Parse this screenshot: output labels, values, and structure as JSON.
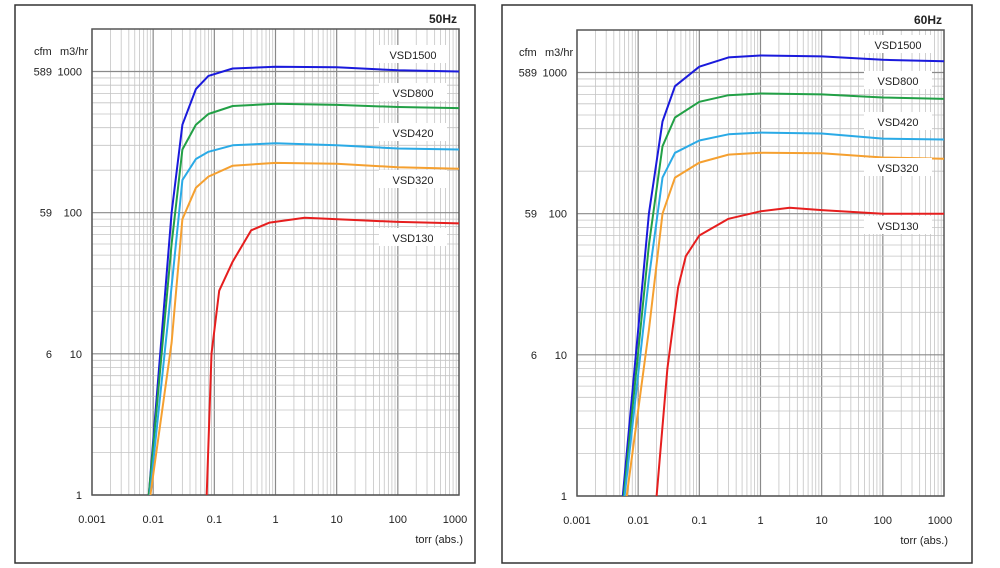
{
  "chart_data": [
    {
      "type": "line",
      "title": "50Hz",
      "xlabel": "torr (abs.)",
      "ylabel": "m3/hr",
      "ylabel_secondary": "cfm",
      "xscale": "log",
      "yscale": "log",
      "xlim": [
        0.001,
        1000
      ],
      "ylim": [
        1,
        2000
      ],
      "grid": true,
      "x_ticks": [
        "0.001",
        "0.01",
        "0.1",
        "1",
        "10",
        "100",
        "1000"
      ],
      "y_ticks": [
        {
          "value": 1000,
          "label": "1000",
          "cfm": "589"
        },
        {
          "value": 100,
          "label": "100",
          "cfm": "59"
        },
        {
          "value": 10,
          "label": "10",
          "cfm": "6"
        },
        {
          "value": 1,
          "label": "1",
          "cfm": ""
        }
      ],
      "series": [
        {
          "name": "VSD1500",
          "color": "#1a1adc",
          "points": [
            [
              0.0085,
              1
            ],
            [
              0.02,
              100
            ],
            [
              0.03,
              420
            ],
            [
              0.05,
              750
            ],
            [
              0.08,
              930
            ],
            [
              0.2,
              1050
            ],
            [
              1,
              1080
            ],
            [
              10,
              1070
            ],
            [
              100,
              1020
            ],
            [
              1000,
              1000
            ]
          ]
        },
        {
          "name": "VSD800",
          "color": "#22a046",
          "points": [
            [
              0.0085,
              1
            ],
            [
              0.02,
              60
            ],
            [
              0.03,
              280
            ],
            [
              0.05,
              420
            ],
            [
              0.08,
              500
            ],
            [
              0.2,
              570
            ],
            [
              1,
              590
            ],
            [
              10,
              580
            ],
            [
              100,
              560
            ],
            [
              1000,
              550
            ]
          ]
        },
        {
          "name": "VSD420",
          "color": "#2aaae6",
          "points": [
            [
              0.0088,
              1
            ],
            [
              0.02,
              30
            ],
            [
              0.03,
              170
            ],
            [
              0.05,
              240
            ],
            [
              0.08,
              270
            ],
            [
              0.2,
              300
            ],
            [
              1,
              310
            ],
            [
              10,
              300
            ],
            [
              100,
              285
            ],
            [
              1000,
              280
            ]
          ]
        },
        {
          "name": "VSD320",
          "color": "#f5a030",
          "points": [
            [
              0.009,
              1
            ],
            [
              0.02,
              12
            ],
            [
              0.03,
              90
            ],
            [
              0.05,
              150
            ],
            [
              0.08,
              180
            ],
            [
              0.2,
              215
            ],
            [
              1,
              225
            ],
            [
              10,
              222
            ],
            [
              100,
              210
            ],
            [
              1000,
              205
            ]
          ]
        },
        {
          "name": "VSD130",
          "color": "#e61e1e",
          "points": [
            [
              0.075,
              1
            ],
            [
              0.09,
              10
            ],
            [
              0.12,
              28
            ],
            [
              0.2,
              45
            ],
            [
              0.4,
              75
            ],
            [
              0.8,
              85
            ],
            [
              3,
              92
            ],
            [
              100,
              86
            ],
            [
              1000,
              84
            ]
          ]
        }
      ]
    },
    {
      "type": "line",
      "title": "60Hz",
      "xlabel": "torr (abs.)",
      "ylabel": "m3/hr",
      "ylabel_secondary": "cfm",
      "xscale": "log",
      "yscale": "log",
      "xlim": [
        0.001,
        1000
      ],
      "ylim": [
        1,
        2000
      ],
      "grid": true,
      "x_ticks": [
        "0.001",
        "0.01",
        "0.1",
        "1",
        "10",
        "100",
        "1000"
      ],
      "y_ticks": [
        {
          "value": 1000,
          "label": "1000",
          "cfm": "589"
        },
        {
          "value": 100,
          "label": "100",
          "cfm": "59"
        },
        {
          "value": 10,
          "label": "10",
          "cfm": "6"
        },
        {
          "value": 1,
          "label": "1",
          "cfm": ""
        }
      ],
      "series": [
        {
          "name": "VSD1500",
          "color": "#1a1adc",
          "points": [
            [
              0.0056,
              1
            ],
            [
              0.015,
              100
            ],
            [
              0.025,
              450
            ],
            [
              0.04,
              800
            ],
            [
              0.1,
              1100
            ],
            [
              0.3,
              1280
            ],
            [
              1,
              1320
            ],
            [
              10,
              1300
            ],
            [
              100,
              1230
            ],
            [
              1000,
              1200
            ]
          ]
        },
        {
          "name": "VSD800",
          "color": "#22a046",
          "points": [
            [
              0.0058,
              1
            ],
            [
              0.015,
              60
            ],
            [
              0.025,
              300
            ],
            [
              0.04,
              480
            ],
            [
              0.1,
              620
            ],
            [
              0.3,
              690
            ],
            [
              1,
              710
            ],
            [
              10,
              700
            ],
            [
              100,
              665
            ],
            [
              1000,
              650
            ]
          ]
        },
        {
          "name": "VSD420",
          "color": "#2aaae6",
          "points": [
            [
              0.006,
              1
            ],
            [
              0.015,
              35
            ],
            [
              0.025,
              180
            ],
            [
              0.04,
              270
            ],
            [
              0.1,
              330
            ],
            [
              0.3,
              365
            ],
            [
              1,
              375
            ],
            [
              10,
              370
            ],
            [
              100,
              340
            ],
            [
              1000,
              335
            ]
          ]
        },
        {
          "name": "VSD320",
          "color": "#f5a030",
          "points": [
            [
              0.0065,
              1
            ],
            [
              0.015,
              15
            ],
            [
              0.025,
              100
            ],
            [
              0.04,
              180
            ],
            [
              0.1,
              230
            ],
            [
              0.3,
              262
            ],
            [
              1,
              270
            ],
            [
              10,
              268
            ],
            [
              100,
              250
            ],
            [
              1000,
              245
            ]
          ]
        },
        {
          "name": "VSD130",
          "color": "#e61e1e",
          "points": [
            [
              0.02,
              1
            ],
            [
              0.03,
              8
            ],
            [
              0.045,
              30
            ],
            [
              0.06,
              50
            ],
            [
              0.1,
              70
            ],
            [
              0.3,
              92
            ],
            [
              1,
              104
            ],
            [
              3,
              110
            ],
            [
              10,
              106
            ],
            [
              100,
              100
            ],
            [
              1000,
              100
            ]
          ]
        }
      ]
    }
  ]
}
